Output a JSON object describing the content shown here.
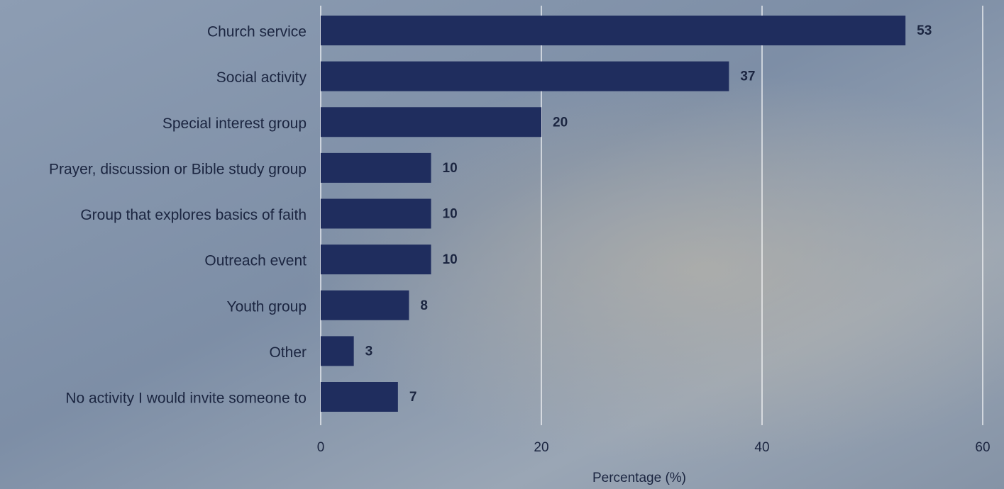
{
  "chart_data": {
    "type": "barh",
    "categories": [
      "Church service",
      "Social activity",
      "Special interest group",
      "Prayer, discussion or Bible study group",
      "Group that explores basics of faith",
      "Outreach event",
      "Youth group",
      "Other",
      "No activity I would invite someone to"
    ],
    "values": [
      53,
      37,
      20,
      10,
      10,
      10,
      8,
      3,
      7
    ],
    "color": "#1f2d5e",
    "xlabel": "Percentage (%)",
    "xlim": [
      0,
      60
    ],
    "xticks": [
      0,
      20,
      40,
      60
    ],
    "grid": true
  }
}
